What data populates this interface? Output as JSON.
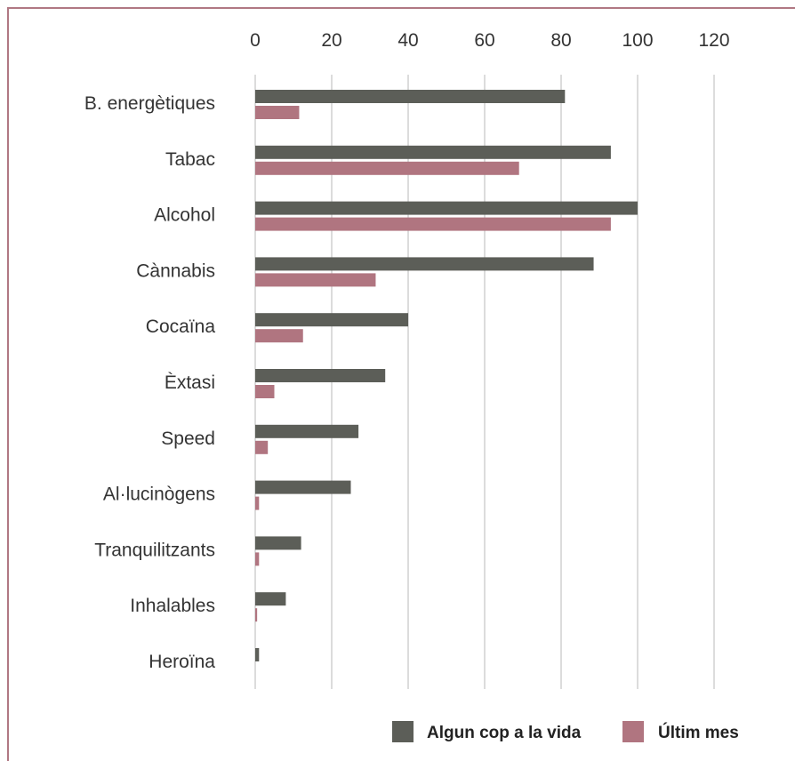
{
  "chart_data": {
    "type": "bar",
    "orientation": "horizontal",
    "categories": [
      "B. energètiques",
      "Tabac",
      "Alcohol",
      "Cànnabis",
      "Cocaïna",
      "Èxtasi",
      "Speed",
      "Al·lucinògens",
      "Tranquilitzants",
      "Inhalables",
      "Heroïna"
    ],
    "series": [
      {
        "name": "Algun cop a la vida",
        "color": "#5c5e58",
        "values": [
          81,
          93,
          100,
          88.5,
          40,
          34,
          27,
          25,
          12,
          8,
          1
        ]
      },
      {
        "name": "Últim mes",
        "color": "#b07580",
        "values": [
          11.5,
          69,
          93,
          31.5,
          12.5,
          5,
          3.3,
          1,
          1,
          0.5,
          0
        ]
      }
    ],
    "xlim": [
      0,
      120
    ],
    "xticks": [
      "0",
      "20",
      "40",
      "60",
      "80",
      "100",
      "120"
    ],
    "grid": true,
    "axis_position": "top",
    "legend_position": "bottom-right"
  }
}
